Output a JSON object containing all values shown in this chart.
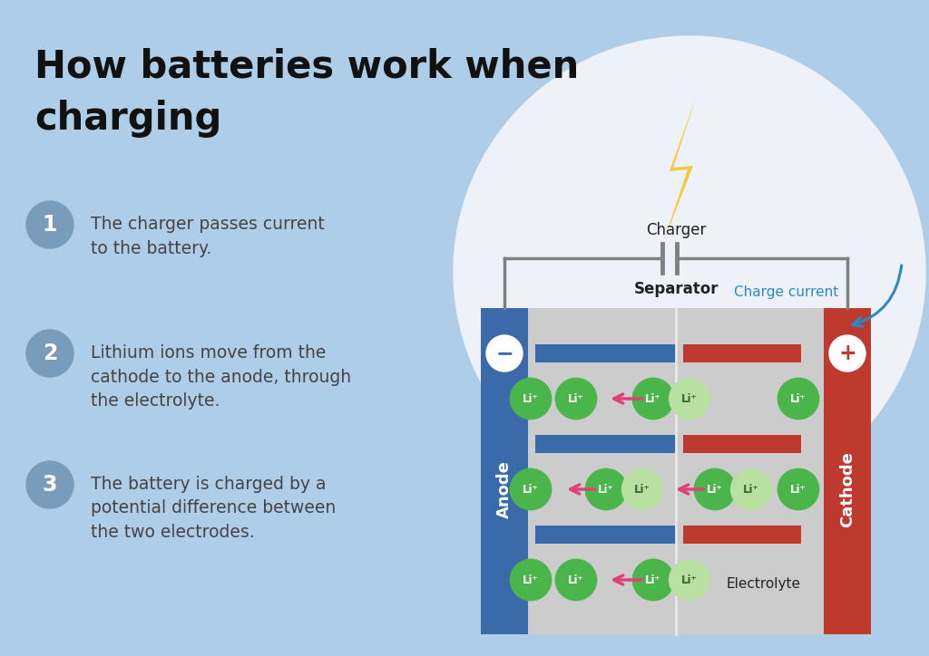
{
  "bg_color": "#aecde8",
  "title_line1": "How batteries work when",
  "title_line2": "charging",
  "title_color": "#111111",
  "title_fontsize": 30,
  "step_circle_color": "#7a9cbb",
  "step_text_color": "#444444",
  "steps": [
    {
      "num": "1",
      "text": "The charger passes current\nto the battery."
    },
    {
      "num": "2",
      "text": "Lithium ions move from the\ncathode to the anode, through\nthe electrolyte."
    },
    {
      "num": "3",
      "text": "The battery is charged by a\npotential difference between\nthe two electrodes."
    }
  ],
  "anode_color": "#3a6aaa",
  "cathode_color": "#be3a2e",
  "inner_bg_color": "#cccccc",
  "electrode_bar_blue": "#3a6aaa",
  "electrode_bar_red": "#be3a2e",
  "ion_green_dark": "#4ab54a",
  "ion_green_light": "#b8e0a0",
  "ion_border_dark": "#2a8a2a",
  "ion_border_light": "#7abe5a",
  "arrow_color": "#e0407a",
  "wire_color": "#808080",
  "charge_current_color": "#2a8ac8",
  "lightning_color": "#f5c842",
  "white_circle_color": "#eef2f8",
  "sep_line_color": "#e8e8e8",
  "charger_label": "Charger",
  "charge_current_label": "Charge current",
  "separator_label": "Separator",
  "electrolyte_label": "Electrolyte",
  "anode_label": "Anode",
  "cathode_label": "Cathode"
}
